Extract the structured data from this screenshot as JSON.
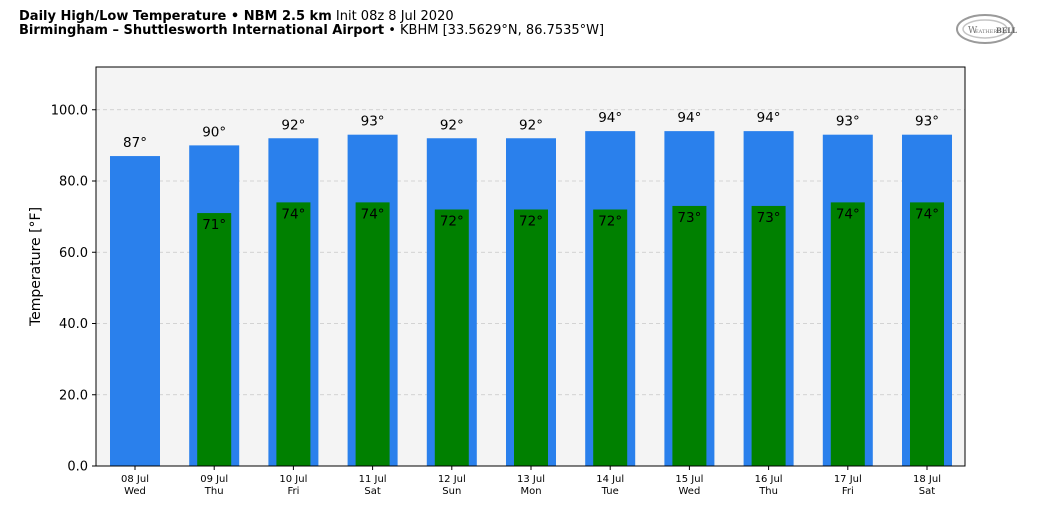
{
  "header": {
    "line1_bold": "Daily High/Low Temperature • NBM 2.5 km",
    "line1_rest": "Init 08z 8 Jul 2020",
    "line2_bold": "Birmingham – Shuttlesworth International Airport",
    "line2_rest": "• KBHM [33.5629°N, 86.7535°W]",
    "logo_text_left": "W",
    "logo_text_mid": "EATHER",
    "logo_text_right": "BELL"
  },
  "colors": {
    "high": "#2a80ec",
    "low": "#008000",
    "plot_bg": "#f4f4f4",
    "grid": "#c8c8c8"
  },
  "chart_data": {
    "type": "bar",
    "title": "Daily High/Low Temperature • NBM 2.5 km",
    "ylabel": "Temperature [°F]",
    "xlabel": "",
    "ylim": [
      0,
      112
    ],
    "yticks": [
      0,
      20,
      40,
      60,
      80,
      100
    ],
    "ytick_labels": [
      "0.0",
      "20.0",
      "40.0",
      "60.0",
      "80.0",
      "100.0"
    ],
    "grid": true,
    "categories": [
      "08 Jul",
      "09 Jul",
      "10 Jul",
      "11 Jul",
      "12 Jul",
      "13 Jul",
      "14 Jul",
      "15 Jul",
      "16 Jul",
      "17 Jul",
      "18 Jul"
    ],
    "weekdays": [
      "Wed",
      "Thu",
      "Fri",
      "Sat",
      "Sun",
      "Mon",
      "Tue",
      "Wed",
      "Thu",
      "Fri",
      "Sat"
    ],
    "series": [
      {
        "name": "High",
        "values": [
          87,
          90,
          92,
          93,
          92,
          92,
          94,
          94,
          94,
          93,
          93
        ],
        "labels": [
          "87°",
          "90°",
          "92°",
          "93°",
          "92°",
          "92°",
          "94°",
          "94°",
          "94°",
          "93°",
          "93°"
        ]
      },
      {
        "name": "Low",
        "values": [
          null,
          71,
          74,
          74,
          72,
          72,
          72,
          73,
          73,
          74,
          74
        ],
        "labels": [
          "",
          "71°",
          "74°",
          "74°",
          "72°",
          "72°",
          "72°",
          "73°",
          "73°",
          "74°",
          "74°"
        ]
      }
    ]
  }
}
